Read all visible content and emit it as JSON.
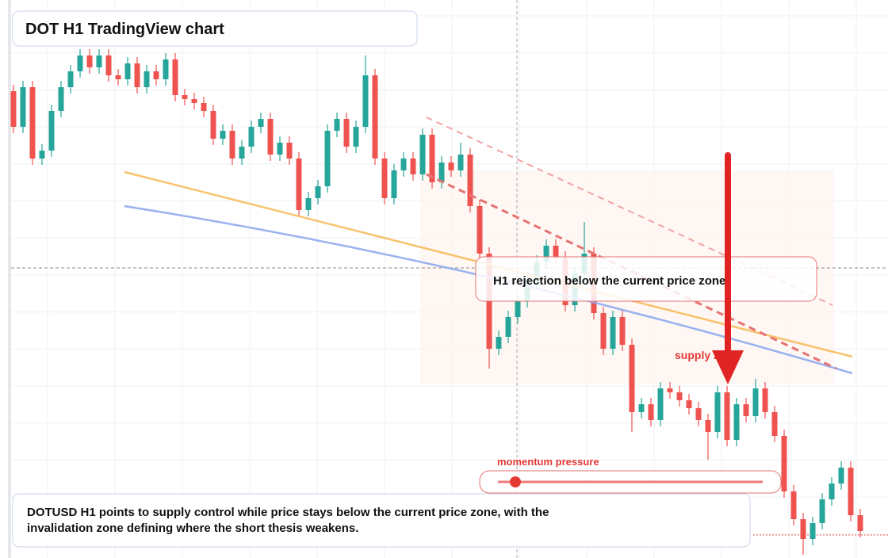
{
  "chart_data": {
    "type": "candlestick",
    "title": "DOT H1 TradingView chart",
    "annotations": {
      "rejection": "H1 rejection below the current price zone",
      "zone": "supply zone",
      "momentum": "momentum pressure"
    },
    "caption": "DOTUSD H1 points to supply control while price stays below the current price zone, with the invalidation zone defining where the short thesis weakens.",
    "up_color": "#26a69a",
    "down_color": "#ef5350",
    "open": [
      585,
      540,
      590,
      500,
      510,
      560,
      590,
      610,
      630,
      615,
      630,
      605,
      600,
      620,
      590,
      610,
      600,
      625,
      580,
      575,
      570,
      560,
      525,
      535,
      500,
      515,
      540,
      550,
      505,
      520,
      500,
      435,
      450,
      465,
      535,
      550,
      515,
      540,
      605,
      500,
      450,
      485,
      500,
      480,
      530,
      470,
      495,
      485,
      505,
      440,
      380,
      260,
      275,
      300,
      320,
      345,
      370,
      390,
      375,
      315,
      355,
      380,
      305,
      260,
      300,
      265,
      180,
      190,
      170,
      210,
      205,
      195,
      185,
      170,
      155,
      205,
      145,
      190,
      175,
      210,
      180,
      150,
      80,
      45,
      20,
      40,
      70,
      90,
      110,
      50
    ],
    "high": [
      593,
      598,
      598,
      518,
      568,
      598,
      618,
      638,
      638,
      638,
      638,
      613,
      628,
      628,
      618,
      618,
      633,
      633,
      588,
      583,
      578,
      568,
      543,
      543,
      523,
      548,
      558,
      558,
      528,
      528,
      508,
      458,
      473,
      543,
      558,
      558,
      548,
      630,
      613,
      508,
      493,
      508,
      508,
      538,
      538,
      503,
      503,
      520,
      513,
      448,
      388,
      283,
      308,
      328,
      353,
      378,
      398,
      398,
      383,
      363,
      420,
      388,
      313,
      308,
      308,
      273,
      198,
      198,
      218,
      218,
      213,
      203,
      193,
      178,
      213,
      213,
      198,
      198,
      222,
      218,
      188,
      158,
      88,
      53,
      48,
      78,
      98,
      118,
      118,
      58
    ],
    "low": [
      532,
      532,
      492,
      492,
      502,
      552,
      582,
      602,
      607,
      607,
      597,
      592,
      592,
      582,
      582,
      592,
      592,
      572,
      567,
      562,
      552,
      517,
      517,
      492,
      492,
      507,
      532,
      497,
      497,
      492,
      427,
      427,
      442,
      457,
      527,
      507,
      507,
      532,
      492,
      442,
      442,
      477,
      472,
      472,
      462,
      462,
      477,
      477,
      432,
      372,
      235,
      252,
      267,
      292,
      312,
      337,
      362,
      367,
      307,
      307,
      347,
      297,
      252,
      252,
      257,
      155,
      172,
      162,
      162,
      197,
      187,
      177,
      162,
      120,
      147,
      137,
      137,
      167,
      167,
      172,
      142,
      72,
      37,
      0,
      12,
      32,
      62,
      82,
      42,
      22
    ],
    "close": [
      540,
      590,
      500,
      510,
      560,
      590,
      610,
      630,
      615,
      630,
      605,
      600,
      620,
      590,
      610,
      600,
      625,
      580,
      575,
      570,
      560,
      525,
      535,
      500,
      515,
      540,
      550,
      505,
      520,
      500,
      435,
      450,
      465,
      535,
      550,
      515,
      540,
      605,
      500,
      450,
      485,
      500,
      480,
      530,
      470,
      495,
      485,
      505,
      440,
      380,
      260,
      275,
      300,
      320,
      345,
      370,
      390,
      375,
      315,
      355,
      380,
      305,
      260,
      300,
      265,
      180,
      190,
      170,
      210,
      205,
      195,
      185,
      170,
      155,
      205,
      145,
      190,
      175,
      210,
      180,
      150,
      80,
      45,
      20,
      40,
      70,
      90,
      110,
      50,
      30
    ],
    "grid": true
  }
}
